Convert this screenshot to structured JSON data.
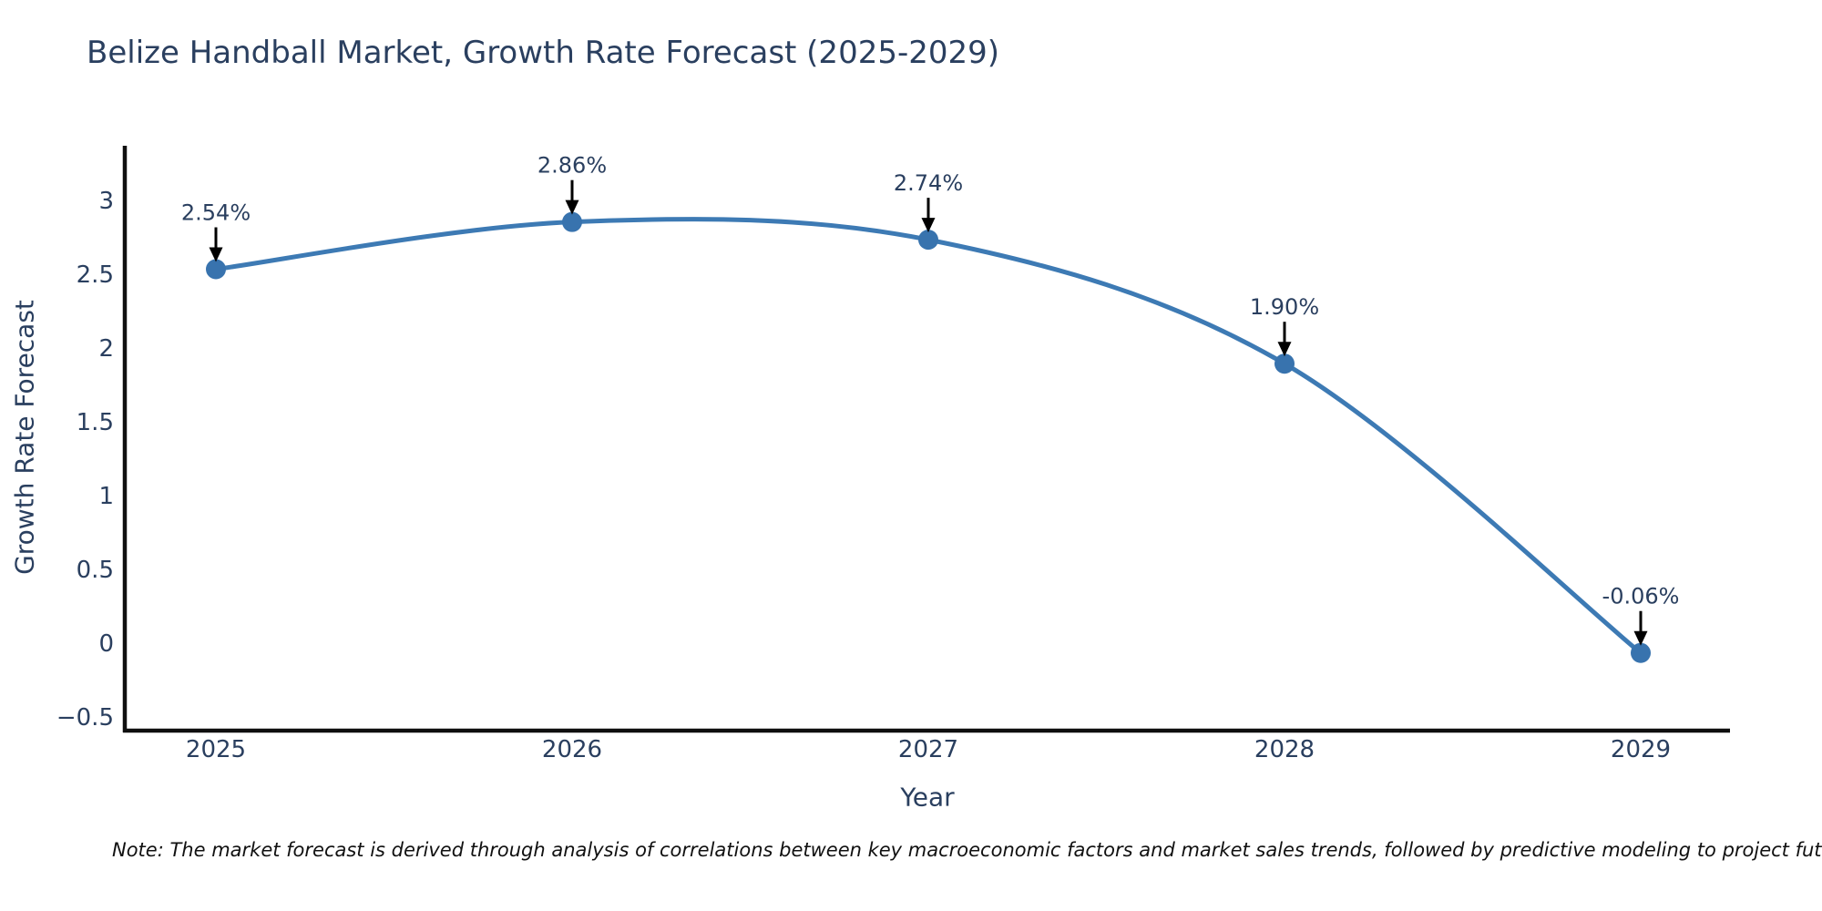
{
  "chart_data": {
    "type": "line",
    "line_shape": "spline",
    "title": "Belize Handball Market, Growth Rate Forecast (2025-2029)",
    "xlabel": "Year",
    "ylabel": "Growth Rate Forecast",
    "x": [
      2025,
      2026,
      2027,
      2028,
      2029
    ],
    "xtick_labels": [
      "2025",
      "2026",
      "2027",
      "2028",
      "2029"
    ],
    "series": [
      {
        "name": "Growth Rate Forecast",
        "values": [
          2.54,
          2.86,
          2.74,
          1.9,
          -0.06
        ]
      }
    ],
    "point_labels": [
      "2.54%",
      "2.86%",
      "2.74%",
      "1.90%",
      "-0.06%"
    ],
    "yticks": [
      {
        "label": "−0.5",
        "value": -0.5
      },
      {
        "label": "0",
        "value": 0
      },
      {
        "label": "0.5",
        "value": 0.5
      },
      {
        "label": "1",
        "value": 1
      },
      {
        "label": "1.5",
        "value": 1.5
      },
      {
        "label": "2",
        "value": 2
      },
      {
        "label": "2.5",
        "value": 2.5
      },
      {
        "label": "3",
        "value": 3
      }
    ],
    "ylim": [
      -0.6,
      3.38
    ],
    "xlim_categories_padding": "points inset from both axis ends",
    "grid": false,
    "legend_position": "none",
    "annotations_style": "value label with downward black arrow at each point",
    "colors": {
      "line": "#3d7ab4",
      "marker": "#3873ae",
      "title_text": "#2a3f5f",
      "tick_text": "#2a3f5f",
      "axis_line": "#0f0f0f",
      "annotation_text": "#2a3f5f",
      "arrow": "#000000",
      "background": "#ffffff"
    }
  },
  "footnote": {
    "text": "Note: The market forecast is derived through analysis of correlations between key macroeconomic factors and market sales trends, followed by predictive modeling to project future sales."
  }
}
